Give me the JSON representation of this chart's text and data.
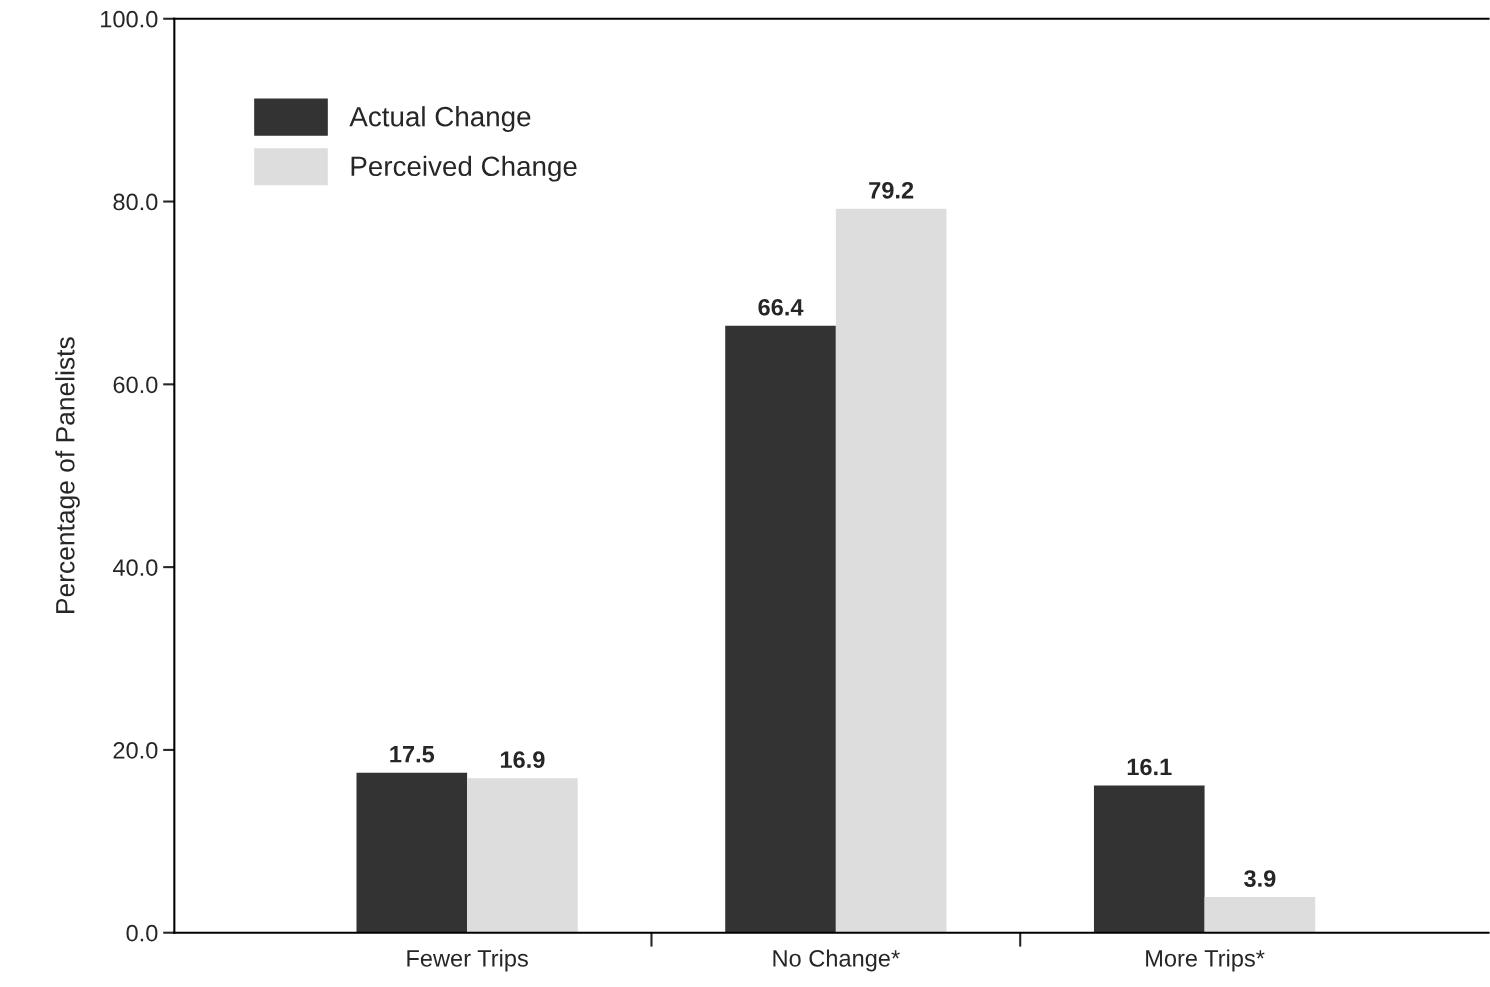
{
  "chart_data": {
    "type": "bar",
    "ylabel": "Percentage of Panelists",
    "categories": [
      "Fewer Trips",
      "No Change*",
      "More Trips*"
    ],
    "series": [
      {
        "name": "Actual Change",
        "color": "#333333",
        "values": [
          17.5,
          66.4,
          16.1
        ]
      },
      {
        "name": "Perceived Change",
        "color": "#dddddd",
        "values": [
          16.9,
          79.2,
          3.9
        ]
      }
    ],
    "ylim": [
      0,
      100
    ],
    "yticks": [
      {
        "value": 0,
        "label": "0.0"
      },
      {
        "value": 20,
        "label": "20.0"
      },
      {
        "value": 40,
        "label": "40.0"
      },
      {
        "value": 60,
        "label": "60.0"
      },
      {
        "value": 80,
        "label": "80.0"
      },
      {
        "value": 100,
        "label": "100.0"
      }
    ],
    "data_labels": true,
    "legend": "top left",
    "grid": false
  }
}
